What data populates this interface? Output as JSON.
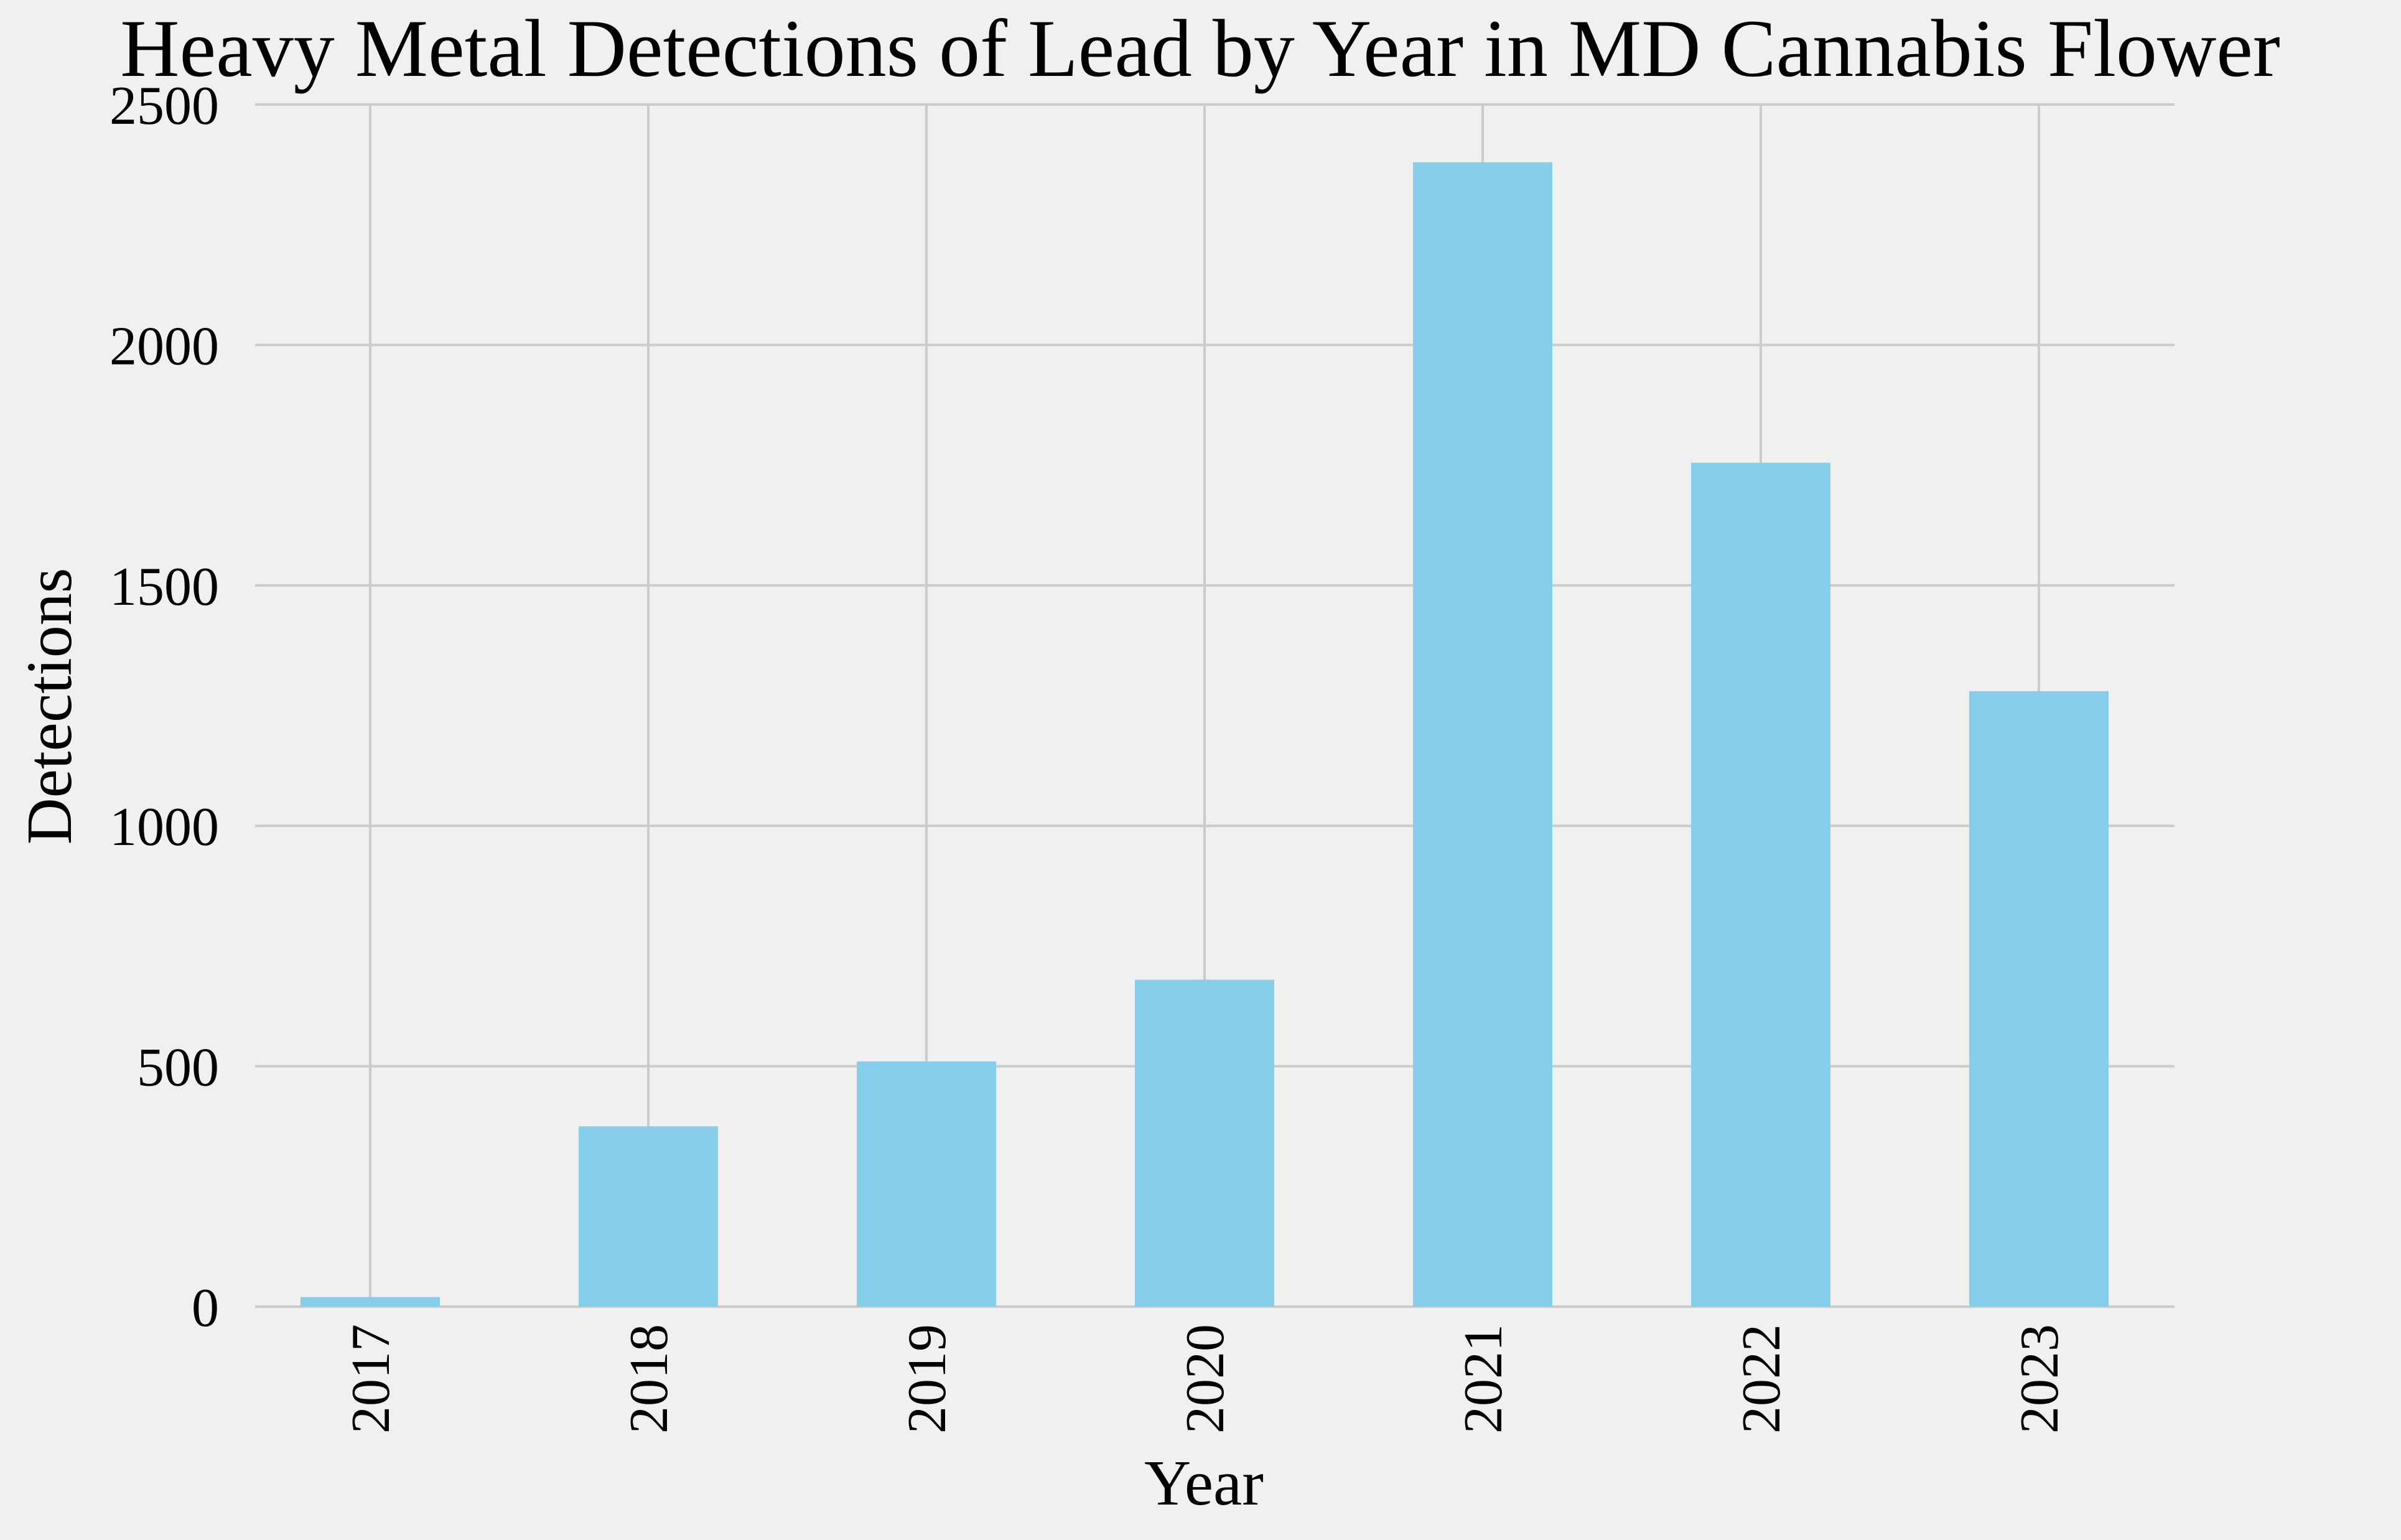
{
  "chart_data": {
    "type": "bar",
    "title": "Heavy Metal Detections of Lead by Year in MD Cannabis Flower",
    "xlabel": "Year",
    "ylabel": "Detections",
    "categories": [
      "2017",
      "2018",
      "2019",
      "2020",
      "2021",
      "2022",
      "2023"
    ],
    "values": [
      20,
      375,
      510,
      680,
      2380,
      1755,
      1280
    ],
    "ylim": [
      0,
      2500
    ],
    "yticks": [
      0,
      500,
      1000,
      1500,
      2000,
      2500
    ],
    "xtick_rotation": "vertical",
    "grid": true,
    "legend": "none",
    "colors": {
      "bar": "#87ceeb",
      "background": "#f0f0f0",
      "grid": "#cbcbcb",
      "text": "#000000"
    }
  }
}
